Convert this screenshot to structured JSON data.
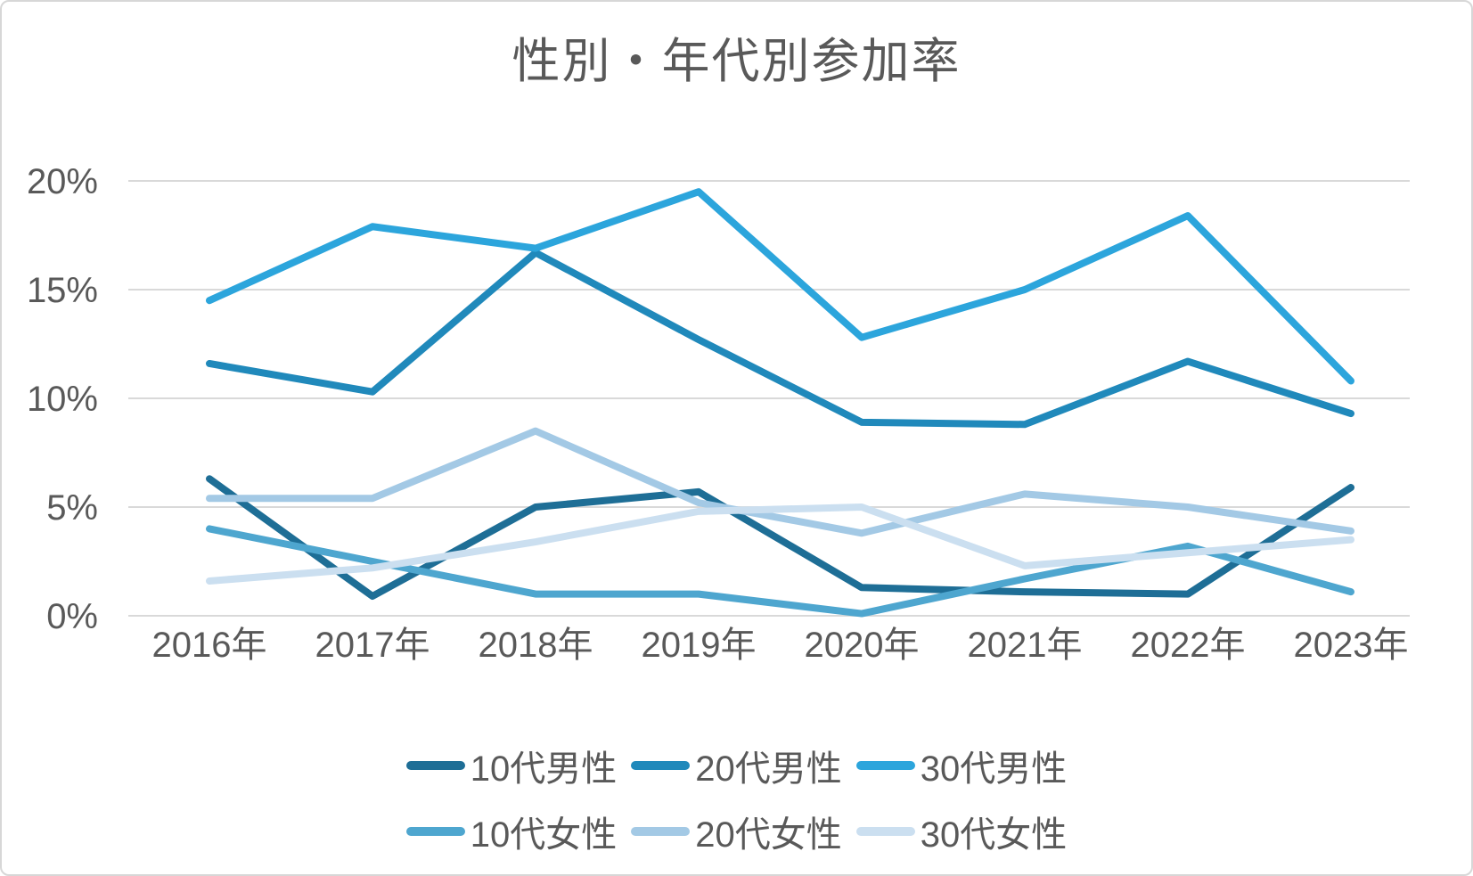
{
  "frame": {
    "background_color": "#ffffff",
    "border_color": "#d7d7d7"
  },
  "chart_data": {
    "type": "line",
    "title": "性別・年代別参加率",
    "categories": [
      "2016年",
      "2017年",
      "2018年",
      "2019年",
      "2020年",
      "2021年",
      "2022年",
      "2023年"
    ],
    "series": [
      {
        "name": "10代男性",
        "key": "male-10s",
        "color": "#1e6e96",
        "values": [
          6.3,
          0.9,
          5.0,
          5.7,
          1.3,
          1.1,
          1.0,
          5.9
        ]
      },
      {
        "name": "20代男性",
        "key": "male-20s",
        "color": "#2089bb",
        "values": [
          11.6,
          10.3,
          16.7,
          12.7,
          8.9,
          8.8,
          11.7,
          9.3
        ]
      },
      {
        "name": "30代男性",
        "key": "male-30s",
        "color": "#2ca5dc",
        "values": [
          14.5,
          17.9,
          16.9,
          19.5,
          12.8,
          15.0,
          18.4,
          10.8
        ]
      },
      {
        "name": "10代女性",
        "key": "female-10s",
        "color": "#4ea6cf",
        "values": [
          4.0,
          2.5,
          1.0,
          1.0,
          0.1,
          1.7,
          3.2,
          1.1
        ]
      },
      {
        "name": "20代女性",
        "key": "female-20s",
        "color": "#a3c9e5",
        "values": [
          5.4,
          5.4,
          8.5,
          5.2,
          3.8,
          5.6,
          5.0,
          3.9
        ]
      },
      {
        "name": "30代女性",
        "key": "female-30s",
        "color": "#cbdff0",
        "values": [
          1.6,
          2.2,
          3.4,
          4.8,
          5.0,
          2.3,
          2.9,
          3.5
        ]
      }
    ],
    "y_axis": {
      "tick_labels": [
        "0%",
        "5%",
        "10%",
        "15%",
        "20%"
      ],
      "tick_values": [
        0,
        5,
        10,
        15,
        20
      ],
      "min": 0,
      "max": 20,
      "unit": "%"
    },
    "grid": true,
    "legend_position": "bottom",
    "legend_rows": 2,
    "text_color": "#595959",
    "gridline_color": "#d9d9d9"
  }
}
